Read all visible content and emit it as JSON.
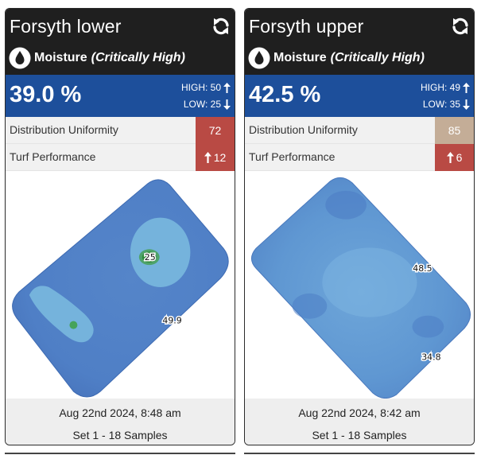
{
  "cards": [
    {
      "title": "Forsyth lower",
      "refresh_icon": "refresh-icon",
      "metric_icon": "water-drop-icon",
      "metric": "Moisture",
      "status": "(Critically High)",
      "value": "39.0 %",
      "high_label": "HIGH: 50",
      "low_label": "LOW: 25",
      "stats": [
        {
          "label": "Distribution Uniformity",
          "value": "72",
          "color": "#b94a44",
          "trend": ""
        },
        {
          "label": "Turf Performance",
          "value": "12",
          "color": "#b94a44",
          "trend": "up"
        }
      ],
      "map_labels": [
        "25",
        "49.9"
      ],
      "date": "Aug 22nd 2024, 8:48 am",
      "samples": "Set 1 - 18 Samples"
    },
    {
      "title": "Forsyth upper",
      "refresh_icon": "refresh-icon",
      "metric_icon": "water-drop-icon",
      "metric": "Moisture",
      "status": "(Critically High)",
      "value": "42.5 %",
      "high_label": "HIGH: 49",
      "low_label": "LOW: 35",
      "stats": [
        {
          "label": "Distribution Uniformity",
          "value": "85",
          "color": "#c4ad97",
          "trend": ""
        },
        {
          "label": "Turf Performance",
          "value": "6",
          "color": "#b94a44",
          "trend": "up"
        }
      ],
      "map_labels": [
        "48.5",
        "34.8"
      ],
      "date": "Aug 22nd 2024, 8:42 am",
      "samples": "Set 1 - 18 Samples"
    }
  ]
}
